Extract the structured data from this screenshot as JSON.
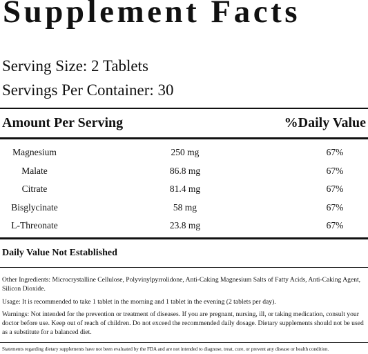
{
  "title": "Supplement Facts",
  "serving_size": "Serving Size: 2 Tablets",
  "servings_per_container": "Servings Per Container: 30",
  "header": {
    "amount": "Amount Per Serving",
    "daily_value": "%Daily Value"
  },
  "rows": [
    [
      "Magnesium",
      "250 mg",
      "67%"
    ],
    [
      "Malate",
      "86.8 mg",
      "67%"
    ],
    [
      "Citrate",
      "81.4 mg",
      "67%"
    ],
    [
      "Bisglycinate",
      "58 mg",
      "67%"
    ],
    [
      "L-Threonate",
      "23.8 mg",
      "67%"
    ]
  ],
  "not_established": "Daily Value Not Established",
  "other_ingredients": "Other Ingredients: Microcrystalline Cellulose, Polyvinylpyrrolidone, Anti-Caking Magnesium Salts of Fatty Acids, Anti-Caking Agent, Silicon Dioxide.",
  "usage": "Usage: It is recommended to take 1 tablet in the morning and 1 tablet in the evening (2 tablets per day).",
  "warnings": "Warnings: Not intended for the prevention or treatment of diseases. If you are pregnant, nursing, ill, or taking medication, consult your doctor before use. Keep out of reach of children. Do not exceed the recommended daily dosage. Dietary supplements should not be used as a substitute for a balanced diet.",
  "statement": "Statements regarding dietary supplements have not been evaluated by the FDA and are not intended to diagnose, treat, cure, or prevent any disease or health condition."
}
